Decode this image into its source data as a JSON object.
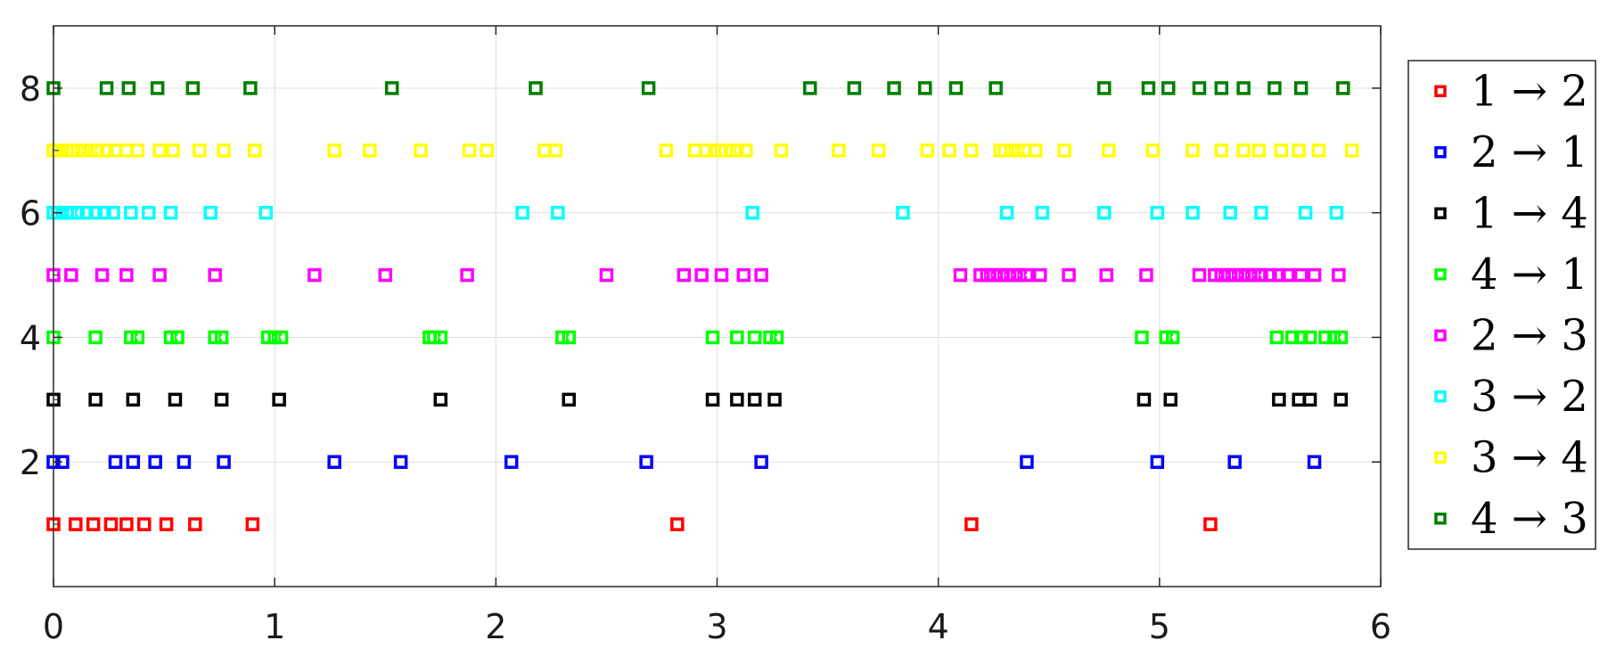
{
  "chart_data": {
    "type": "scatter",
    "xlim": [
      0,
      6
    ],
    "ylim": [
      0,
      9
    ],
    "x_ticks": [
      "0",
      "1",
      "2",
      "3",
      "4",
      "5",
      "6"
    ],
    "y_ticks": [
      "2",
      "4",
      "6",
      "8"
    ],
    "grid": true,
    "legend_placement": "outside-right",
    "marker": "square",
    "series": [
      {
        "name": "1 → 2",
        "color": "#ff0000",
        "y": 1,
        "x": [
          0.0,
          0.1,
          0.18,
          0.26,
          0.33,
          0.41,
          0.51,
          0.64,
          0.9,
          2.82,
          4.15,
          5.23
        ]
      },
      {
        "name": "2 → 1",
        "color": "#0000ff",
        "y": 2,
        "x": [
          0.0,
          0.04,
          0.28,
          0.36,
          0.46,
          0.59,
          0.77,
          1.27,
          1.57,
          2.07,
          2.68,
          3.2,
          4.4,
          4.99,
          5.34,
          5.7
        ]
      },
      {
        "name": "1 → 4",
        "color": "#000000",
        "y": 3,
        "x": [
          0.0,
          0.19,
          0.36,
          0.55,
          0.76,
          1.02,
          1.75,
          2.33,
          2.98,
          3.09,
          3.17,
          3.26,
          4.93,
          5.05,
          5.54,
          5.63,
          5.68,
          5.82
        ]
      },
      {
        "name": "4 → 1",
        "color": "#00ff00",
        "y": 4,
        "x": [
          0.0,
          0.19,
          0.35,
          0.38,
          0.53,
          0.56,
          0.73,
          0.76,
          0.97,
          1.0,
          1.03,
          1.7,
          1.72,
          1.75,
          2.3,
          2.33,
          2.98,
          3.09,
          3.17,
          3.24,
          3.27,
          4.92,
          5.03,
          5.06,
          5.53,
          5.6,
          5.64,
          5.68,
          5.75,
          5.79,
          5.82
        ]
      },
      {
        "name": "2 → 3",
        "color": "#ff00ff",
        "y": 5,
        "x": [
          0.0,
          0.08,
          0.22,
          0.33,
          0.48,
          0.73,
          1.18,
          1.5,
          1.87,
          2.5,
          2.85,
          2.93,
          3.02,
          3.12,
          3.2,
          4.1,
          4.19,
          4.22,
          4.25,
          4.28,
          4.31,
          4.34,
          4.37,
          4.4,
          4.46,
          4.59,
          4.76,
          4.94,
          5.18,
          5.25,
          5.28,
          5.31,
          5.34,
          5.37,
          5.4,
          5.43,
          5.46,
          5.5,
          5.54,
          5.58,
          5.64,
          5.7,
          5.81
        ]
      },
      {
        "name": "3 → 2",
        "color": "#00ffff",
        "y": 6,
        "x": [
          0.0,
          0.02,
          0.04,
          0.06,
          0.08,
          0.11,
          0.15,
          0.19,
          0.23,
          0.27,
          0.35,
          0.43,
          0.53,
          0.71,
          0.96,
          2.12,
          2.28,
          3.16,
          3.84,
          4.31,
          4.47,
          4.75,
          4.99,
          5.15,
          5.32,
          5.46,
          5.66,
          5.8
        ]
      },
      {
        "name": "3 → 4",
        "color": "#ffff00",
        "y": 7,
        "x": [
          0.0,
          0.02,
          0.04,
          0.06,
          0.08,
          0.11,
          0.14,
          0.17,
          0.2,
          0.24,
          0.28,
          0.33,
          0.38,
          0.48,
          0.54,
          0.66,
          0.77,
          0.91,
          1.27,
          1.43,
          1.66,
          1.88,
          1.96,
          2.22,
          2.27,
          2.77,
          2.9,
          2.95,
          2.99,
          3.02,
          3.06,
          3.09,
          3.13,
          3.29,
          3.55,
          3.73,
          3.95,
          4.05,
          4.15,
          4.28,
          4.3,
          4.33,
          4.36,
          4.39,
          4.44,
          4.57,
          4.77,
          4.97,
          5.15,
          5.28,
          5.38,
          5.45,
          5.55,
          5.63,
          5.72,
          5.87
        ]
      },
      {
        "name": "4 → 3",
        "color": "#007f00",
        "y": 8,
        "x": [
          0.0,
          0.24,
          0.34,
          0.47,
          0.63,
          0.89,
          1.53,
          2.18,
          2.69,
          3.42,
          3.62,
          3.8,
          3.94,
          4.08,
          4.26,
          4.75,
          4.95,
          5.04,
          5.18,
          5.28,
          5.38,
          5.52,
          5.64,
          5.83
        ]
      }
    ]
  }
}
